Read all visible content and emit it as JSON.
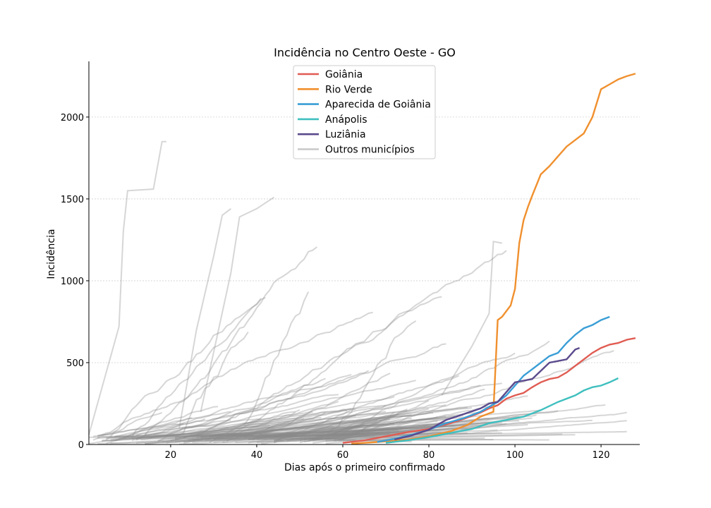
{
  "chart_data": {
    "type": "line",
    "title": "Incidência no Centro Oeste - GO",
    "xlabel": "Dias após o primeiro confirmado",
    "ylabel": "Incidência",
    "xlim": [
      1,
      129
    ],
    "ylim": [
      0,
      2340
    ],
    "x_ticks": [
      20,
      40,
      60,
      80,
      100,
      120
    ],
    "y_ticks": [
      0,
      500,
      1000,
      1500,
      2000
    ],
    "grid": "horizontal",
    "legend_position": "top-center",
    "series": [
      {
        "name": "Goiânia",
        "color": "#e05c52",
        "x": [
          60,
          65,
          70,
          75,
          80,
          85,
          88,
          90,
          92,
          94,
          96,
          98,
          100,
          102,
          104,
          106,
          108,
          110,
          112,
          114,
          116,
          118,
          120,
          122,
          124,
          126,
          128
        ],
        "y": [
          10,
          25,
          50,
          75,
          95,
          130,
          155,
          175,
          195,
          220,
          240,
          280,
          300,
          315,
          350,
          380,
          400,
          410,
          440,
          480,
          520,
          560,
          590,
          610,
          620,
          640,
          650
        ]
      },
      {
        "name": "Rio Verde",
        "color": "#f0902e",
        "x": [
          62,
          68,
          75,
          80,
          85,
          89,
          92,
          94,
          95,
          96,
          97,
          99,
          100,
          101,
          102,
          103,
          104,
          106,
          108,
          110,
          112,
          114,
          116,
          118,
          120,
          122,
          124,
          126,
          128
        ],
        "y": [
          5,
          15,
          30,
          50,
          80,
          120,
          170,
          190,
          200,
          760,
          780,
          850,
          950,
          1230,
          1370,
          1450,
          1520,
          1650,
          1700,
          1760,
          1820,
          1860,
          1900,
          2000,
          2170,
          2200,
          2230,
          2250,
          2265
        ]
      },
      {
        "name": "Aparecida de Goiânia",
        "color": "#3a9ed6",
        "x": [
          68,
          72,
          76,
          80,
          84,
          88,
          92,
          96,
          98,
          100,
          102,
          104,
          106,
          108,
          110,
          112,
          114,
          116,
          118,
          120,
          122
        ],
        "y": [
          15,
          35,
          60,
          90,
          130,
          160,
          200,
          260,
          300,
          360,
          420,
          460,
          500,
          540,
          560,
          620,
          670,
          710,
          730,
          760,
          780
        ]
      },
      {
        "name": "Anápolis",
        "color": "#3fbfbf",
        "x": [
          70,
          75,
          80,
          85,
          90,
          94,
          98,
          102,
          106,
          110,
          114,
          116,
          118,
          120,
          122,
          124
        ],
        "y": [
          10,
          25,
          45,
          70,
          95,
          130,
          150,
          170,
          210,
          260,
          300,
          330,
          350,
          360,
          380,
          405
        ]
      },
      {
        "name": "Luziânia",
        "color": "#5b4a8c",
        "x": [
          72,
          76,
          80,
          84,
          88,
          92,
          94,
          96,
          98,
          100,
          102,
          104,
          106,
          108,
          110,
          112,
          114,
          115
        ],
        "y": [
          30,
          55,
          90,
          150,
          185,
          220,
          250,
          260,
          320,
          380,
          390,
          400,
          450,
          500,
          510,
          520,
          580,
          590
        ]
      }
    ],
    "background_series": {
      "name": "Outros municípios",
      "color": "#c8c8c8"
    },
    "legend": [
      "Goiânia",
      "Rio Verde",
      "Aparecida de Goiânia",
      "Anápolis",
      "Luziânia",
      "Outros municípios"
    ]
  }
}
